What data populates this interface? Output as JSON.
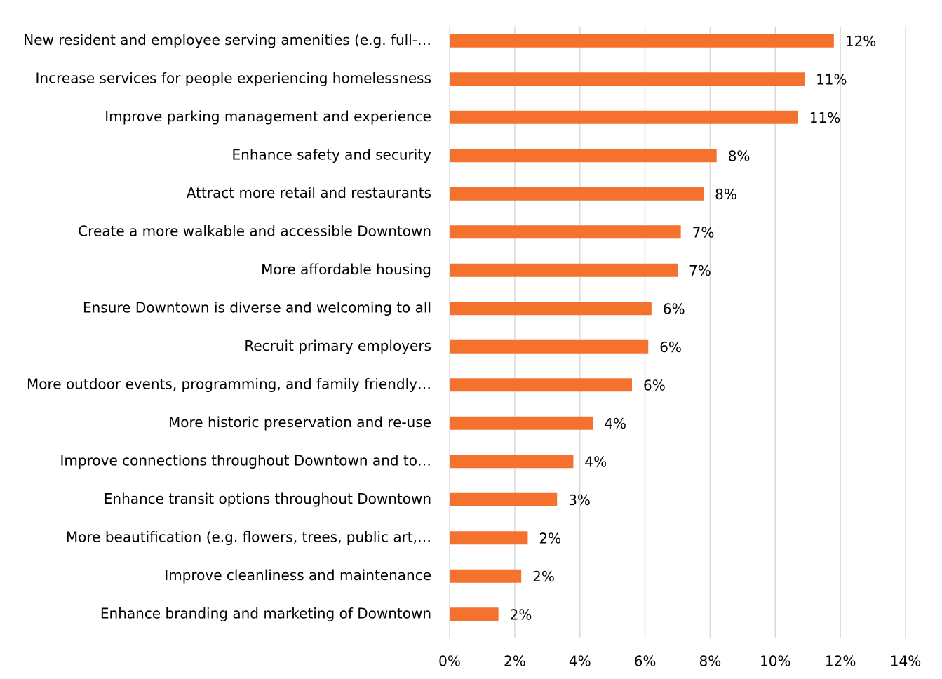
{
  "chart_data": {
    "type": "barh",
    "categories": [
      "New resident and employee serving amenities (e.g. full-…",
      "Increase services for people experiencing homelessness",
      "Improve parking management and experience",
      "Enhance safety and security",
      "Attract more retail and restaurants",
      "Create a more walkable and accessible Downtown",
      "More affordable housing",
      "Ensure Downtown is diverse and welcoming to all",
      "Recruit primary employers",
      "More outdoor events, programming, and family friendly…",
      "More historic preservation and re-use",
      "Improve connections throughout Downtown and to…",
      "Enhance transit options throughout Downtown",
      "More beautification (e.g. flowers, trees, public art,…",
      "Improve cleanliness and maintenance",
      "Enhance branding and marketing of Downtown"
    ],
    "values": [
      11.8,
      10.9,
      10.7,
      8.2,
      7.8,
      7.1,
      7.0,
      6.2,
      6.1,
      5.6,
      4.4,
      3.8,
      3.3,
      2.4,
      2.2,
      1.5
    ],
    "value_labels": [
      "12%",
      "11%",
      "11%",
      "8%",
      "8%",
      "7%",
      "7%",
      "6%",
      "6%",
      "6%",
      "4%",
      "4%",
      "3%",
      "2%",
      "2%",
      "2%"
    ],
    "color": "#f4722e",
    "xlim": [
      0,
      14
    ],
    "xticks": [
      {
        "value": 0,
        "label": "0%"
      },
      {
        "value": 2,
        "label": "2%"
      },
      {
        "value": 4,
        "label": "4%"
      },
      {
        "value": 6,
        "label": "6%"
      },
      {
        "value": 8,
        "label": "8%"
      },
      {
        "value": 10,
        "label": "10%"
      },
      {
        "value": 12,
        "label": "12%"
      },
      {
        "value": 14,
        "label": "14%"
      }
    ],
    "grid": true
  }
}
